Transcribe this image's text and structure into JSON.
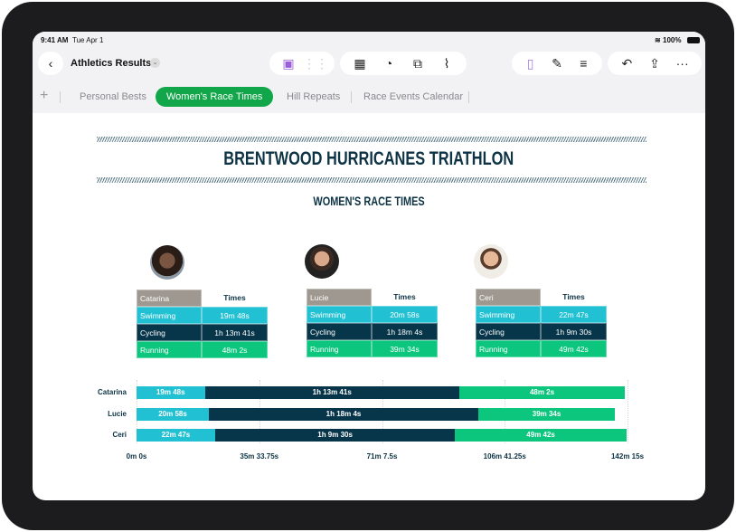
{
  "status": {
    "time": "9:41 AM",
    "date": "Tue Apr 1",
    "battery": "100%"
  },
  "toolbar": {
    "doc_title": "Athletics Results",
    "icons": [
      "back-icon",
      "chevron-down-icon",
      "media-icon",
      "grid-icon",
      "table-icon",
      "chart-icon",
      "shapes-icon",
      "attachment-icon",
      "format-icon",
      "brush-icon",
      "organize-icon",
      "undo-icon",
      "share-icon",
      "more-icon"
    ]
  },
  "tabs": [
    {
      "label": "Personal Bests"
    },
    {
      "label": "Women's Race Times",
      "active": true
    },
    {
      "label": "Hill Repeats"
    },
    {
      "label": "Race Events Calendar"
    }
  ],
  "doc": {
    "title": "BRENTWOOD HURRICANES TRIATHLON",
    "subtitle": "WOMEN'S RACE TIMES"
  },
  "colors": {
    "swimming": "#22c0d3",
    "cycling": "#07364a",
    "running": "#0cc67e",
    "header": "#9e9890"
  },
  "athletes": [
    {
      "name": "Catarina",
      "times_header": "Times",
      "rows": [
        [
          "Swimming",
          "19m 48s"
        ],
        [
          "Cycling",
          "1h 13m 41s"
        ],
        [
          "Running",
          "48m 2s"
        ]
      ]
    },
    {
      "name": "Lucie",
      "times_header": "Times",
      "rows": [
        [
          "Swimming",
          "20m 58s"
        ],
        [
          "Cycling",
          "1h 18m 4s"
        ],
        [
          "Running",
          "39m 34s"
        ]
      ]
    },
    {
      "name": "Ceri",
      "times_header": "Times",
      "rows": [
        [
          "Swimming",
          "22m 47s"
        ],
        [
          "Cycling",
          "1h 9m 30s"
        ],
        [
          "Running",
          "49m 42s"
        ]
      ]
    }
  ],
  "chart_data": {
    "type": "bar",
    "stacked": true,
    "orientation": "horizontal",
    "categories": [
      "Catarina",
      "Lucie",
      "Ceri"
    ],
    "series": [
      {
        "values": [
          19.8,
          20.967,
          22.783
        ],
        "labels": [
          "19m 48s",
          "20m 58s",
          "22m 47s"
        ],
        "color": "#22c0d3"
      },
      {
        "values": [
          73.683,
          78.067,
          69.5
        ],
        "labels": [
          "1h 13m 41s",
          "1h 18m 4s",
          "1h 9m 30s"
        ],
        "color": "#07364a"
      },
      {
        "values": [
          48.033,
          39.567,
          49.7
        ],
        "labels": [
          "48m 2s",
          "39m 34s",
          "49m 42s"
        ],
        "color": "#0cc67e"
      }
    ],
    "xlim": [
      0,
      142.25
    ],
    "ticks": [
      0,
      35.5625,
      71.125,
      106.6875,
      142.25
    ],
    "tick_labels": [
      "0m 0s",
      "35m 33.75s",
      "71m 7.5s",
      "106m 41.25s",
      "142m 15s"
    ],
    "grid": true
  }
}
